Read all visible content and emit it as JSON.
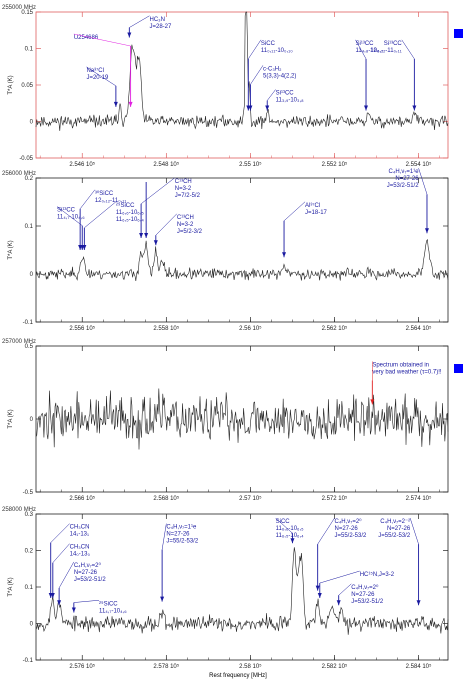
{
  "colors": {
    "axis_first": "#e06060",
    "axis_other": "#222222",
    "spectrum": "#222222",
    "annotation": "#1a1aa0",
    "magenta": "#e020e0",
    "red_note": "#e02020",
    "legend_square": "#0000ff"
  },
  "xlabel": "Rest frequency [MHz]",
  "chart_data": [
    {
      "type": "line",
      "panel_title": "255000 MHz",
      "ylabel": "T*A (K)",
      "xlim": [
        254490,
        255470
      ],
      "ylim": [
        -0.05,
        0.15
      ],
      "xticks": [
        {
          "v": 254600,
          "label": "2.546 10⁵"
        },
        {
          "v": 254800,
          "label": "2.548 10⁵"
        },
        {
          "v": 255000,
          "label": "2.55 10⁵"
        },
        {
          "v": 255200,
          "label": "2.552 10⁵"
        },
        {
          "v": 255400,
          "label": "2.554 10⁵"
        }
      ],
      "yticks": [
        {
          "v": -0.05,
          "label": "-0.05"
        },
        {
          "v": 0,
          "label": "0"
        },
        {
          "v": 0.05,
          "label": "0.05"
        },
        {
          "v": 0.1,
          "label": "0.1"
        },
        {
          "v": 0.15,
          "label": "0.15"
        }
      ],
      "noise": 0.006,
      "seed": 11,
      "lines": [
        {
          "x": 254690,
          "amp": 0.025,
          "w": 3
        },
        {
          "x": 254720,
          "amp": 0.105,
          "w": 6
        },
        {
          "x": 254735,
          "amp": 0.085,
          "w": 5
        },
        {
          "x": 254990,
          "amp": 0.3,
          "w": 2
        },
        {
          "x": 254997,
          "amp": 0.06,
          "w": 2
        },
        {
          "x": 255040,
          "amp": 0.012,
          "w": 3
        },
        {
          "x": 255280,
          "amp": 0.01,
          "w": 3
        },
        {
          "x": 255390,
          "amp": 0.012,
          "w": 3
        }
      ],
      "arrows": [
        {
          "x": 254680,
          "tip": 0.02,
          "label_lines": [
            "Na³⁷Cl",
            "J=20-19"
          ],
          "lx": 254610,
          "ly": 0.068
        },
        {
          "x": 254712,
          "tip": 0.115,
          "label_lines": [
            "HC₃N",
            "J=28-27"
          ],
          "lx": 254760,
          "ly": 0.138
        },
        {
          "x": 254715,
          "tip": 0.02,
          "label_lines": [
            "U254686"
          ],
          "lx": 254580,
          "ly": 0.113,
          "color": "magenta"
        },
        {
          "x": 254995,
          "tip": 0.015,
          "label_lines": [
            "SiCC",
            "11₀,₁₁-10₀,₁₀"
          ],
          "lx": 255025,
          "ly": 0.105
        },
        {
          "x": 255000,
          "tip": 0.015,
          "label_lines": [
            "c-C₃H₂",
            "5(3,3)-4(2,2)"
          ],
          "lx": 255030,
          "ly": 0.07
        },
        {
          "x": 255040,
          "tip": 0.015,
          "label_lines": [
            "Si¹³CC",
            "11₃,₉-10₃,₈"
          ],
          "lx": 255060,
          "ly": 0.037
        },
        {
          "x": 255275,
          "tip": 0.015,
          "label_lines": [
            "Si¹³CC",
            "11₄,₈-10₄,₇"
          ],
          "lx": 255250,
          "ly": 0.105
        },
        {
          "x": 255390,
          "tip": 0.015,
          "label_lines": [
            "Si¹³CC",
            "12₀,₁₂-11₀,₁₁"
          ],
          "lx": 255360,
          "ly": 0.105
        }
      ],
      "note": null
    },
    {
      "type": "line",
      "panel_title": "256000 MHz",
      "ylabel": "T*A (K)",
      "xlim": [
        255490,
        256470
      ],
      "ylim": [
        -0.1,
        0.2
      ],
      "xticks": [
        {
          "v": 255600,
          "label": "2.556 10⁵"
        },
        {
          "v": 255800,
          "label": "2.558 10⁵"
        },
        {
          "v": 256000,
          "label": "2.56 10⁵"
        },
        {
          "v": 256200,
          "label": "2.562 10⁵"
        },
        {
          "v": 256400,
          "label": "2.564 10⁵"
        }
      ],
      "yticks": [
        {
          "v": -0.1,
          "label": "-0.1"
        },
        {
          "v": 0,
          "label": "0"
        },
        {
          "v": 0.1,
          "label": "0.1"
        },
        {
          "v": 0.2,
          "label": "0.2"
        }
      ],
      "noise": 0.008,
      "seed": 23,
      "lines": [
        {
          "x": 255600,
          "amp": 0.035,
          "w": 5
        },
        {
          "x": 255740,
          "amp": 0.045,
          "w": 4
        },
        {
          "x": 255752,
          "amp": 0.06,
          "w": 4
        },
        {
          "x": 255775,
          "amp": 0.045,
          "w": 4
        },
        {
          "x": 255790,
          "amp": 0.03,
          "w": 4
        },
        {
          "x": 256080,
          "amp": 0.02,
          "w": 4
        },
        {
          "x": 256420,
          "amp": 0.065,
          "w": 6
        }
      ],
      "arrows": [
        {
          "x": 255595,
          "tip": 0.05,
          "label_lines": [
            "³⁰SiCC",
            "12₀,₁₂-11₀,₁₁"
          ],
          "lx": 255630,
          "ly": 0.165
        },
        {
          "x": 255600,
          "tip": 0.05,
          "label_lines": [
            "Si¹³CC",
            "11₄,₇-10₄,₆"
          ],
          "lx": 255540,
          "ly": 0.13
        },
        {
          "x": 255605,
          "tip": 0.05,
          "label_lines": [
            "²⁹SiCC",
            "11₆,₆-10₆,₅",
            "11₆,₅-10₆,₄"
          ],
          "lx": 255680,
          "ly": 0.14
        },
        {
          "x": 255740,
          "tip": 0.075,
          "label_lines": [
            "C¹³CH",
            "N=3-2",
            "J=7/2-5/2"
          ],
          "lx": 255820,
          "ly": 0.19
        },
        {
          "x": 255752,
          "tip": 0.075,
          "label_lines": [],
          "lx": 0,
          "ly": 0
        },
        {
          "x": 255775,
          "tip": 0.06,
          "label_lines": [
            "C¹³CH",
            "N=3-2",
            "J=5/2-3/2"
          ],
          "lx": 255825,
          "ly": 0.115
        },
        {
          "x": 256080,
          "tip": 0.035,
          "label_lines": [
            "Al³⁷Cl",
            "J=18-17"
          ],
          "lx": 256130,
          "ly": 0.14
        },
        {
          "x": 256420,
          "tip": 0.085,
          "label_lines": [
            "C₄H,ν₇=1¹e",
            "N=27-26",
            "J=53/2-51/2"
          ],
          "lx": 256400,
          "ly": 0.21
        }
      ],
      "note": null
    },
    {
      "type": "line",
      "panel_title": "257000 MHz",
      "ylabel": "T*A (K)",
      "xlim": [
        256490,
        257470
      ],
      "ylim": [
        -0.5,
        0.5
      ],
      "xticks": [
        {
          "v": 256600,
          "label": "2.566 10⁵"
        },
        {
          "v": 256800,
          "label": "2.568 10⁵"
        },
        {
          "v": 257000,
          "label": "2.57 10⁵"
        },
        {
          "v": 257200,
          "label": "2.572 10⁵"
        },
        {
          "v": 257400,
          "label": "2.574 10⁵"
        }
      ],
      "yticks": [
        {
          "v": -0.5,
          "label": "-0.5"
        },
        {
          "v": 0,
          "label": "0"
        },
        {
          "v": 0.5,
          "label": "0.5"
        }
      ],
      "noise": 0.11,
      "seed": 37,
      "lines": [],
      "arrows": [],
      "note": {
        "x": 257290,
        "tip": 0.1,
        "label_lines": [
          "Spectrum obtained in",
          "very bad weather (τ=0.7)!!"
        ],
        "lx": 257290,
        "ly": 0.36
      }
    },
    {
      "type": "line",
      "panel_title": "258000 MHz",
      "ylabel": "T*A (K)",
      "xlim": [
        257490,
        258470
      ],
      "ylim": [
        -0.1,
        0.3
      ],
      "xticks": [
        {
          "v": 257600,
          "label": "2.576 10⁵"
        },
        {
          "v": 257800,
          "label": "2.578 10⁵"
        },
        {
          "v": 258000,
          "label": "2.58 10⁵"
        },
        {
          "v": 258200,
          "label": "2.582 10⁵"
        },
        {
          "v": 258400,
          "label": "2.584 10⁵"
        }
      ],
      "yticks": [
        {
          "v": -0.1,
          "label": "-0.1"
        },
        {
          "v": 0,
          "label": "0"
        },
        {
          "v": 0.1,
          "label": "0.1"
        },
        {
          "v": 0.2,
          "label": "0.2"
        },
        {
          "v": 0.3,
          "label": "0.3"
        }
      ],
      "noise": 0.015,
      "seed": 53,
      "lines": [
        {
          "x": 257530,
          "amp": 0.07,
          "w": 4
        },
        {
          "x": 257545,
          "amp": 0.06,
          "w": 4
        },
        {
          "x": 257790,
          "amp": 0.035,
          "w": 4
        },
        {
          "x": 258105,
          "amp": 0.2,
          "w": 5
        },
        {
          "x": 258120,
          "amp": 0.18,
          "w": 5
        },
        {
          "x": 258160,
          "amp": 0.06,
          "w": 4
        },
        {
          "x": 258195,
          "amp": 0.06,
          "w": 4
        },
        {
          "x": 258215,
          "amp": 0.04,
          "w": 4
        }
      ],
      "arrows": [
        {
          "x": 257525,
          "tip": 0.07,
          "label_lines": [
            "CH₃CN",
            "14₁-13₁"
          ],
          "lx": 257570,
          "ly": 0.26
        },
        {
          "x": 257530,
          "tip": 0.07,
          "label_lines": [
            "CH₃CN",
            "14₀-13₀"
          ],
          "lx": 257570,
          "ly": 0.205
        },
        {
          "x": 257545,
          "tip": 0.05,
          "label_lines": [
            "C₄H,ν₇=2⁰",
            "N=27-26",
            "J=53/2-51/2"
          ],
          "lx": 257580,
          "ly": 0.155
        },
        {
          "x": 257580,
          "tip": 0.03,
          "label_lines": [
            "²⁹SiCC",
            "11₄,₇-10₄,₆"
          ],
          "lx": 257640,
          "ly": 0.05
        },
        {
          "x": 257790,
          "tip": 0.06,
          "label_lines": [
            "C₄H,ν₇=1¹e",
            "N=27-26",
            "J=55/2-53/2"
          ],
          "lx": 257800,
          "ly": 0.26
        },
        {
          "x": 258100,
          "tip": 0.22,
          "label_lines": [
            "SiCC",
            "11₆,₆-10₆,₅",
            "11₆,₅-10₆,₄"
          ],
          "lx": 258060,
          "ly": 0.275
        },
        {
          "x": 258160,
          "tip": 0.09,
          "label_lines": [
            "C₄H,ν₇=2⁰",
            "N=27-26",
            "J=55/2-53/2"
          ],
          "lx": 258200,
          "ly": 0.275
        },
        {
          "x": 258165,
          "tip": 0.07,
          "label_lines": [
            "HC¹⁵N,J=3-2"
          ],
          "lx": 258260,
          "ly": 0.13
        },
        {
          "x": 258210,
          "tip": 0.05,
          "label_lines": [
            "C₄H,ν₇=2⁰",
            "N=27-26",
            "J=53/2-51/2"
          ],
          "lx": 258240,
          "ly": 0.095
        },
        {
          "x": 258400,
          "tip": 0.05,
          "label_lines": [
            "C₄H,ν₇=2⁻²",
            "N=27-26",
            "J=55/2-53/2"
          ],
          "lx": 258380,
          "ly": 0.275
        }
      ],
      "note": null
    }
  ]
}
